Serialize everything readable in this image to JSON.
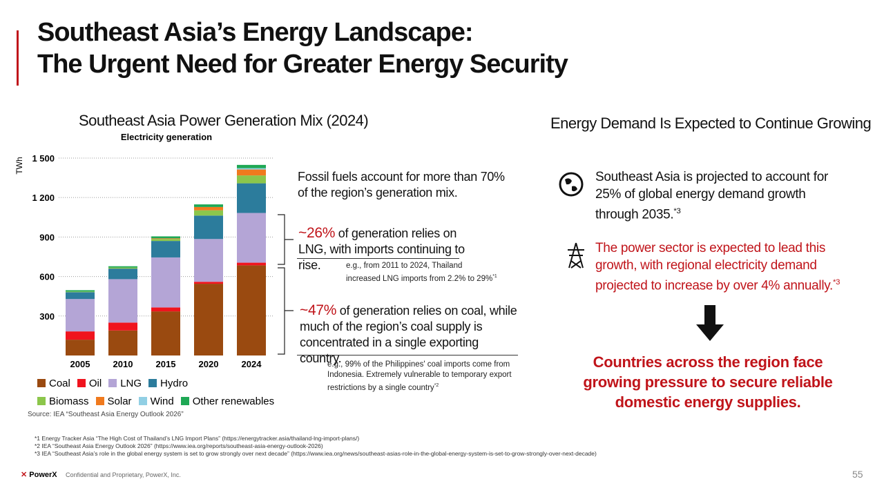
{
  "header": {
    "title_lines": [
      "Southeast Asia’s Energy Landscape:",
      "The Urgent Need for Greater Energy Security"
    ]
  },
  "left_heading": "Southeast Asia Power Generation Mix (2024)",
  "chart_data": {
    "type": "stacked-bar",
    "title": "Electricity generation",
    "y_label": "TWh",
    "categories": [
      "2005",
      "2010",
      "2015",
      "2020",
      "2024"
    ],
    "series": [
      {
        "name": "Coal",
        "color": "#9a4a10",
        "values": [
          120,
          190,
          335,
          545,
          685
        ]
      },
      {
        "name": "Oil",
        "color": "#f0141e",
        "values": [
          63,
          60,
          30,
          15,
          20
        ]
      },
      {
        "name": "LNG",
        "color": "#b4a5d6",
        "values": [
          246,
          330,
          380,
          325,
          378
        ]
      },
      {
        "name": "Hydro",
        "color": "#2c7c9c",
        "values": [
          52,
          80,
          125,
          178,
          225
        ]
      },
      {
        "name": "Biomass",
        "color": "#8cc64b",
        "values": [
          5,
          8,
          15,
          40,
          60
        ]
      },
      {
        "name": "Solar",
        "color": "#f07a1e",
        "values": [
          0,
          0,
          5,
          25,
          45
        ]
      },
      {
        "name": "Wind",
        "color": "#91cfe4",
        "values": [
          0,
          0,
          0,
          0,
          10
        ]
      },
      {
        "name": "Other renewables",
        "color": "#1fa855",
        "values": [
          10,
          10,
          15,
          20,
          25
        ]
      }
    ],
    "ylim": [
      0,
      1600
    ],
    "yticks": [
      300,
      600,
      900,
      {
        "value": 1200,
        "label": "1 200"
      },
      {
        "value": 1500,
        "label": "1 500"
      }
    ],
    "grid": true,
    "source": "Source: IEA “Southeast Asia Energy Outlook 2026”"
  },
  "annotations": {
    "fossil": "Fossil fuels account for more than 70% of the region’s generation mix.",
    "lng": {
      "highlight": "~26%",
      "text": " of generation relies on LNG, with imports continuing to rise.",
      "note": "e.g., from 2011 to 2024, Thailand increased LNG imports from 2.2% to 29%",
      "sup": "*1"
    },
    "coal": {
      "highlight": "~47%",
      "text": " of generation relies on coal, while much of the region’s coal supply is concentrated in a single exporting country.",
      "note": "e.g., 99% of the Philippines' coal imports come from Indonesia. Extremely vulnerable to temporary export restrictions by a single country",
      "sup": "*2"
    }
  },
  "right": {
    "heading": "Energy Demand Is Expected to Continue Growing",
    "items": [
      {
        "text": "Southeast Asia is projected to account for 25% of global energy demand growth through 2035.",
        "sup": "*3"
      },
      {
        "text": "The power sector is expected to lead this growth, with regional electricity demand projected to increase by over 4% annually.",
        "sup": "*3"
      }
    ],
    "conclusion": "Countries across the region face growing pressure to secure reliable domestic energy supplies."
  },
  "footnotes": [
    "*1 Energy Tracker Asia “The High Cost of Thailand’s LNG Import Plans” (https://energytracker.asia/thailand-lng-import-plans/)",
    "*2 IEA “Southeast Asia Energy Outlook 2026” (https://www.iea.org/reports/southeast-asia-energy-outlook-2026)",
    "*3 IEA “Southeast Asia’s role in the global energy system is set to grow strongly over next decade” (https://www.iea.org/news/southeast-asias-role-in-the-global-energy-system-is-set-to-grow-strongly-over-next-decade)"
  ],
  "footer": {
    "logo": "PowerX",
    "confidential": "Confidential and Proprietary, PowerX, Inc.",
    "page": "55"
  }
}
